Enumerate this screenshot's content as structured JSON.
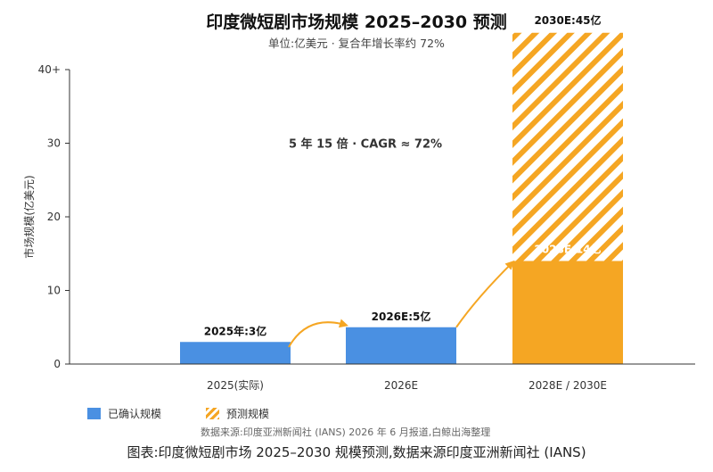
{
  "chart_data": {
    "type": "bar",
    "title": "印度微短剧市场规模 2025–2030 预测",
    "subtitle": "单位:亿美元 · 复合年增长率约 72%",
    "ylabel": "市场规模(亿美元)",
    "xlabel": "",
    "ylim": [
      0,
      40
    ],
    "yticks": [
      0,
      10,
      20,
      30,
      40
    ],
    "ytick_labels": [
      "0",
      "10",
      "20",
      "30",
      "40+"
    ],
    "categories": [
      "2025(实际)",
      "2026E",
      "2028E / 2030E"
    ],
    "series": [
      {
        "name": "已确认规模",
        "style": "solid",
        "values": [
          3,
          5,
          14
        ]
      },
      {
        "name": "预测规模",
        "style": "hatched",
        "values": [
          null,
          null,
          45
        ]
      }
    ],
    "data_labels": [
      "2025年:3亿",
      "2026E:5亿",
      "2028E:14亿",
      "2030E:45亿"
    ],
    "annotation": "5 年 15 倍 · CAGR ≈ 72%",
    "grid": false,
    "legend_position": "bottom-left"
  },
  "colors": {
    "confirmed": "#4a90e2",
    "forecast": "#f5a623",
    "arrow": "#f5a623",
    "axis": "#333333"
  },
  "legend": {
    "confirmed": "已确认规模",
    "forecast": "预测规模"
  },
  "source": "数据来源:印度亚洲新闻社 (IANS) 2026 年 6 月报道,白鲸出海整理",
  "caption": "图表:印度微短剧市场 2025–2030 规模预测,数据来源印度亚洲新闻社 (IANS)"
}
